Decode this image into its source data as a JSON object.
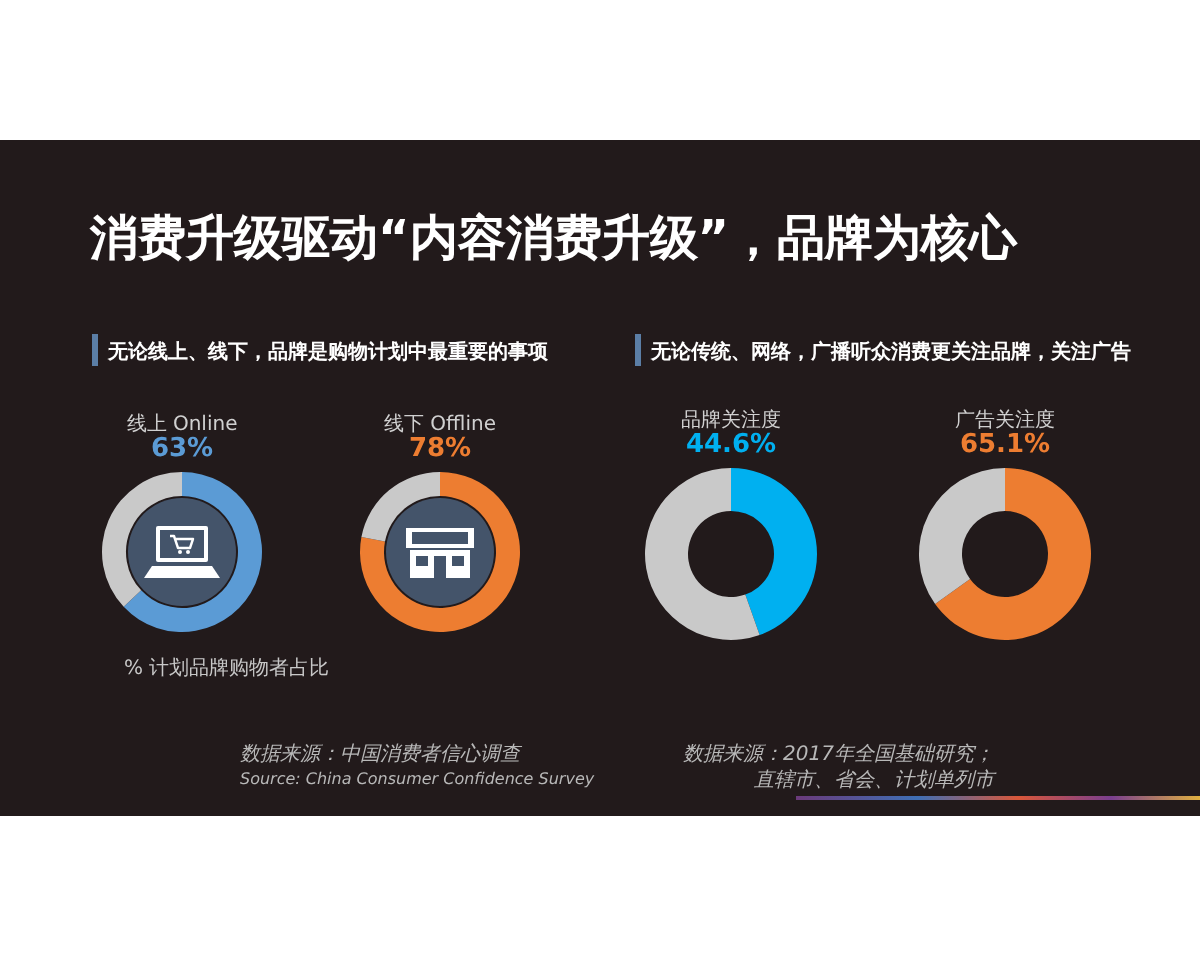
{
  "chart_data": [
    {
      "type": "other",
      "title": "消费升级驱动“内容消费升级”，品牌为核心"
    },
    {
      "type": "donut",
      "subtitle": "无论线上、线下，品牌是购物计划中最重要的事项",
      "title": "线上 Online",
      "categories": [
        null,
        null
      ],
      "values": [
        63,
        37
      ],
      "colors": [
        "#5b9bd5",
        "#c9c9c9"
      ],
      "value_labels": [
        "63%",
        null
      ],
      "annotations": [
        "% 计划品牌购物者占比",
        "数据来源：中国消费者信心调查",
        "Source: China Consumer Confidence Survey"
      ]
    },
    {
      "type": "donut",
      "title": "线下 Offline",
      "categories": [
        null,
        null
      ],
      "values": [
        78,
        22
      ],
      "colors": [
        "#ed7d31",
        "#c9c9c9"
      ],
      "value_labels": [
        "78%",
        null
      ]
    },
    {
      "type": "donut",
      "subtitle": "无论传统、网络，广播听众消费更关注品牌，关注广告",
      "title": "品牌关注度",
      "categories": [
        null,
        null
      ],
      "values": [
        44.6,
        55.4
      ],
      "colors": [
        "#00b0f0",
        "#c9c9c9"
      ],
      "value_labels": [
        "44.6%",
        null
      ]
    },
    {
      "type": "donut",
      "title": "广告关注度",
      "categories": [
        null,
        null
      ],
      "values": [
        65.1,
        34.9
      ],
      "colors": [
        "#ed7d31",
        "#c9c9c9"
      ],
      "value_labels": [
        "65.1%",
        null
      ],
      "annotations": [
        "数据来源：2017年全国基础研究；",
        "直辖市、省会、计划单列市"
      ]
    }
  ]
}
